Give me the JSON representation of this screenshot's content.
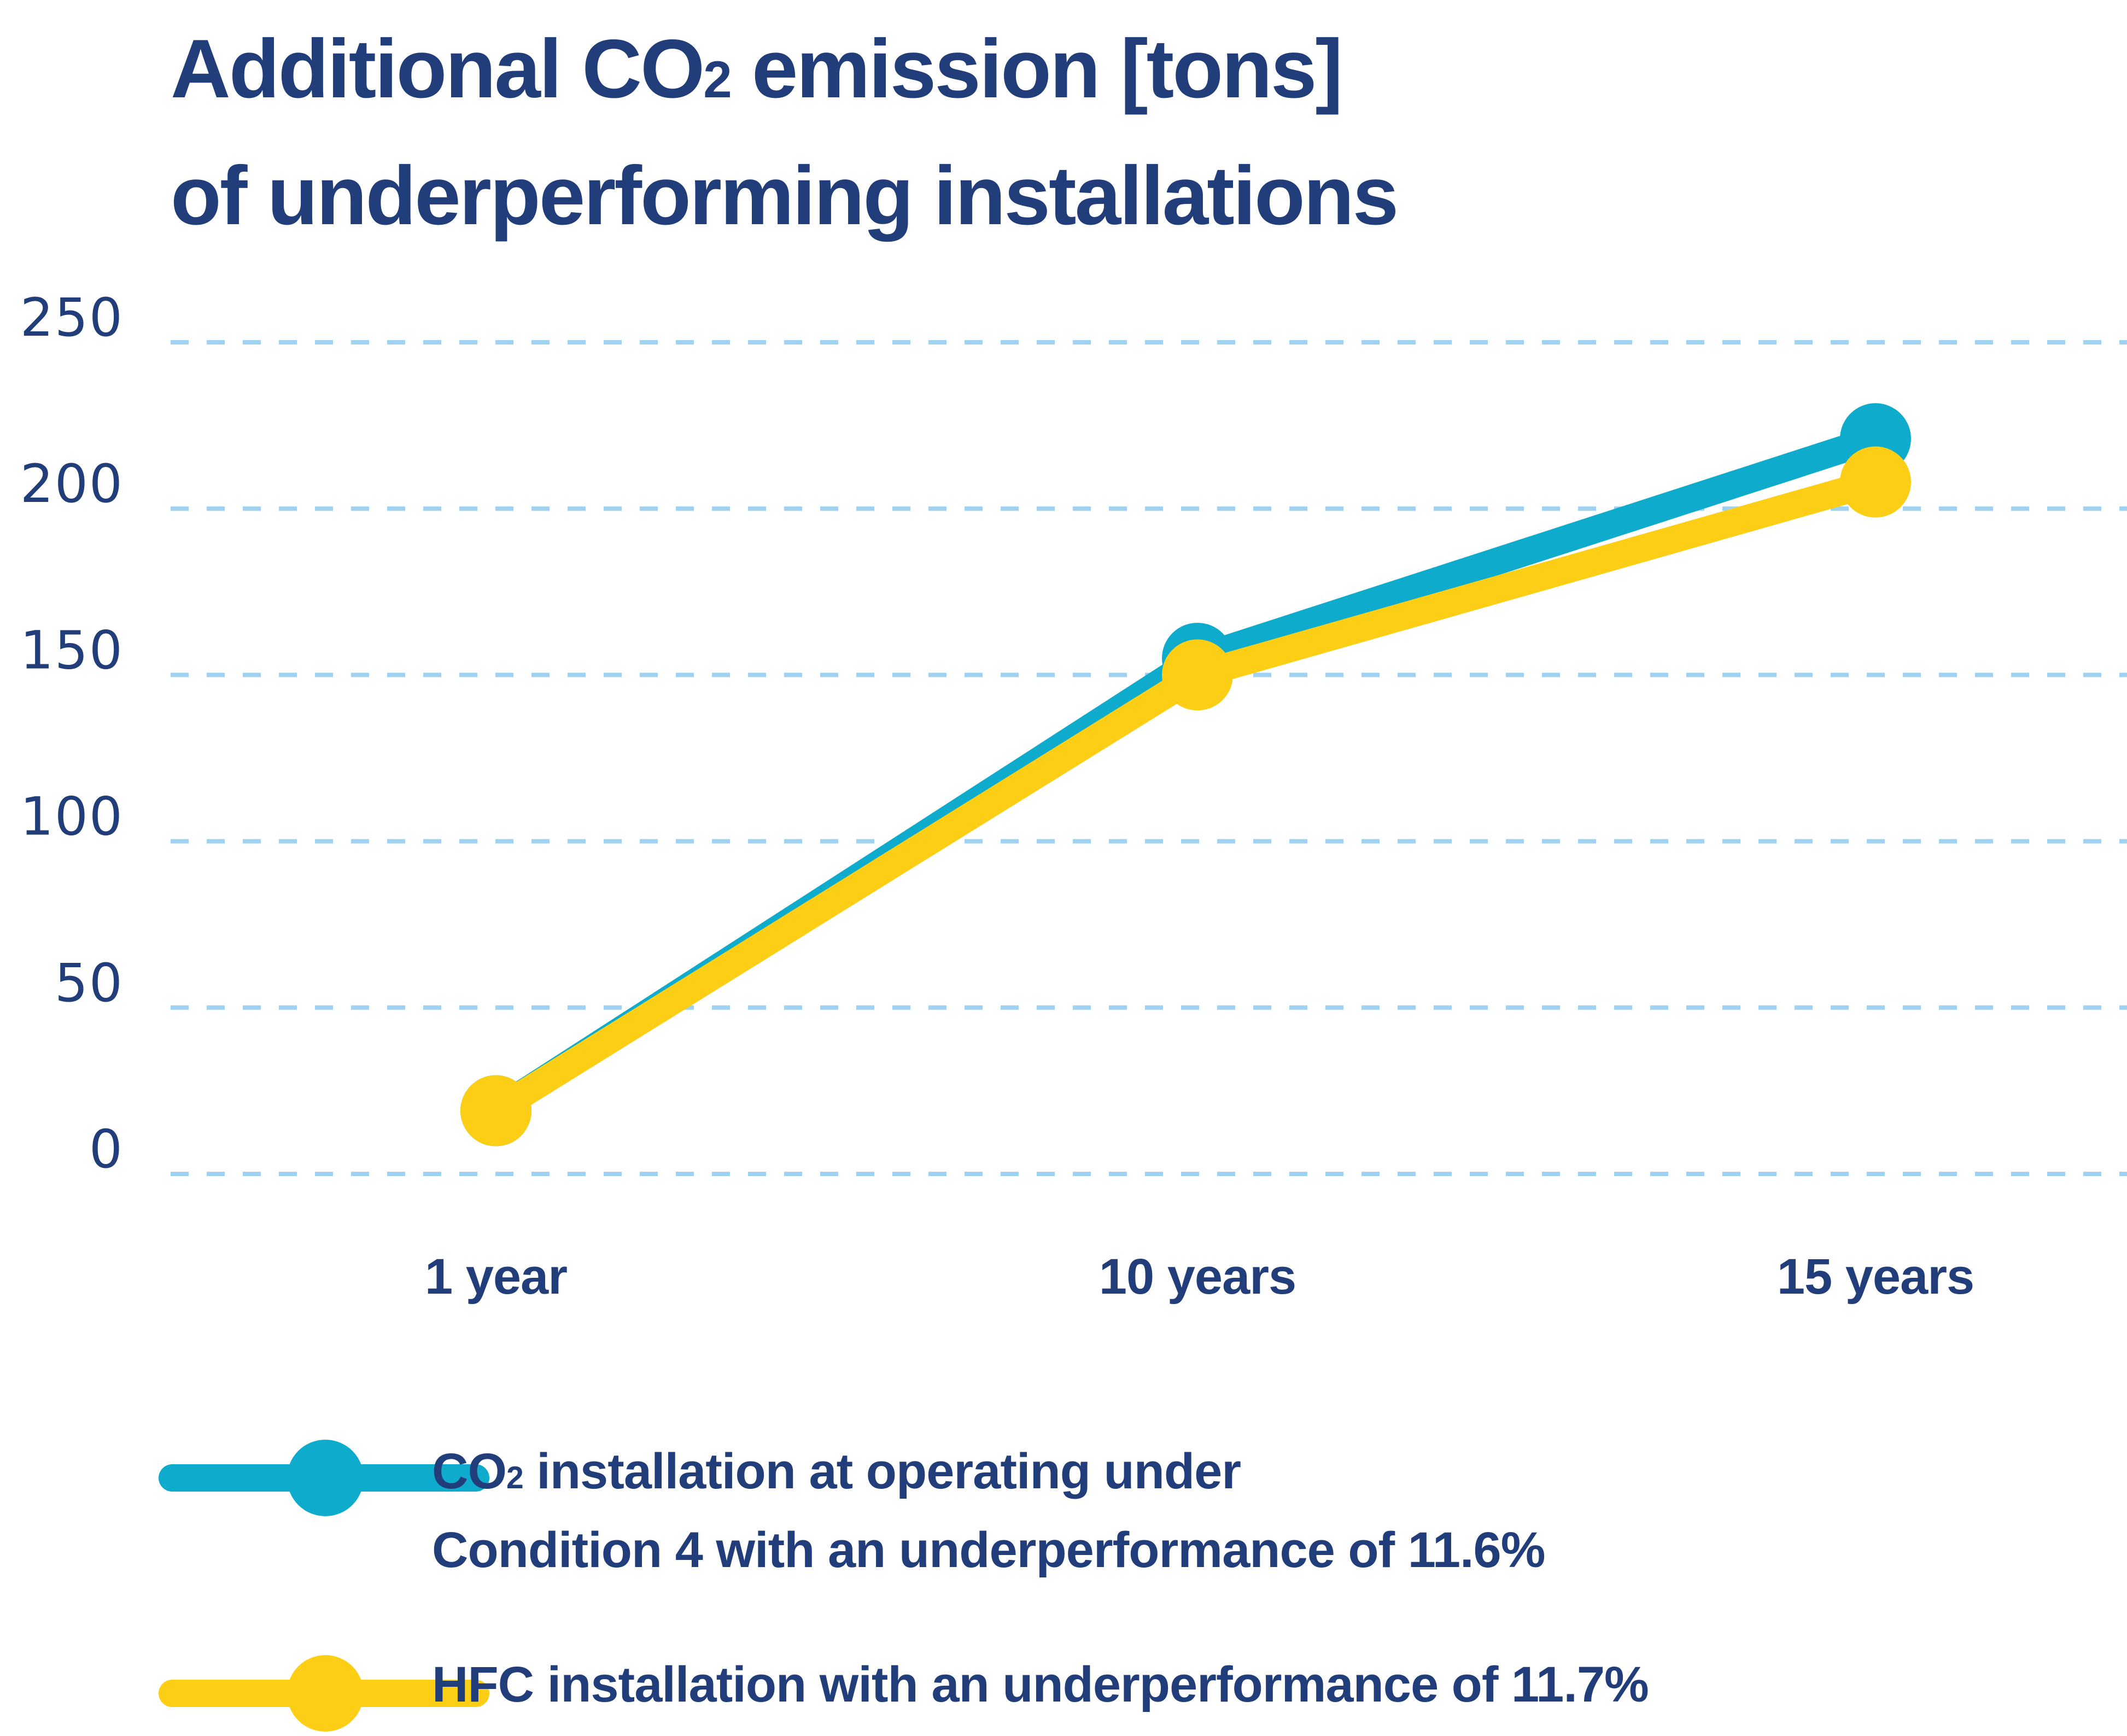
{
  "title": {
    "line1_prefix": "Additional CO",
    "line1_sub": "2",
    "line1_suffix": " emission [tons]",
    "line2": "of underperforming installations"
  },
  "colors": {
    "text": "#213d7a",
    "grid": "#9fd2f2",
    "co2_series": "#0eabcc",
    "hfc_series": "#fccf16"
  },
  "chart_data": {
    "type": "line",
    "title": "Additional CO2 emission [tons] of underperforming installations",
    "xlabel": "",
    "ylabel": "",
    "categories": [
      "1 year",
      "10 years",
      "15 years"
    ],
    "ylim": [
      0,
      250
    ],
    "yticks": [
      "0",
      "50",
      "100",
      "150",
      "200",
      "250"
    ],
    "grid": true,
    "grid_style": "dashed",
    "legend_position": "bottom",
    "series": [
      {
        "name": "CO2 installation at operating under Condition 4 with an underperformance of 11.6%",
        "color": "#0eabcc",
        "values": [
          19,
          155,
          221
        ]
      },
      {
        "name": "HFC installation with an underperformance of 11.7%",
        "color": "#fccf16",
        "values": [
          19,
          150,
          208
        ]
      }
    ]
  },
  "legend": [
    {
      "line1_prefix": "CO",
      "line1_sub": "2",
      "line1_suffix": " installation at operating under",
      "line2": "Condition 4 with an underperformance of 11.6%"
    },
    {
      "line1_prefix": "HFC installation with an underperformance of 11.7%"
    }
  ]
}
